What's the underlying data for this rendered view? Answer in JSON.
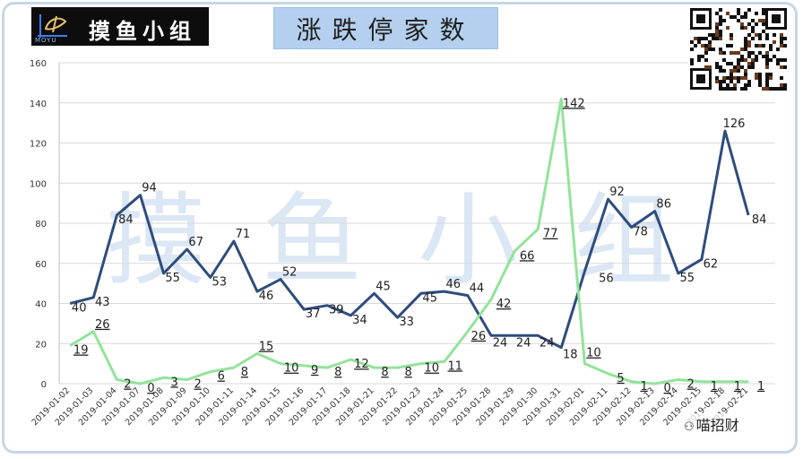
{
  "header": {
    "logo_text": "摸鱼小组",
    "logo_sub": "MOYU",
    "title": "涨跌停家数"
  },
  "watermark": "摸鱼小组",
  "footer": {
    "account": "喵招财"
  },
  "colors": {
    "series_up": "#2e4c7d",
    "series_down": "#93e39a",
    "grid": "#d9d9d9",
    "title_bg": "#b4d0ee",
    "frame": "#c7d6e6"
  },
  "chart_data": {
    "type": "line",
    "title": "涨跌停家数",
    "xlabel": "",
    "ylabel": "",
    "ylim": [
      0,
      160
    ],
    "yticks": [
      0,
      20,
      40,
      60,
      80,
      100,
      120,
      140,
      160
    ],
    "grid": true,
    "legend": "none",
    "categories": [
      "2019-01-02",
      "2019-01-03",
      "2019-01-04",
      "2019-01-07",
      "2019-01-08",
      "2019-01-09",
      "2019-01-10",
      "2019-01-11",
      "2019-01-14",
      "2019-01-15",
      "2019-01-16",
      "2019-01-17",
      "2019-01-18",
      "2019-01-21",
      "2019-01-22",
      "2019-01-23",
      "2019-01-24",
      "2019-01-25",
      "2019-01-28",
      "2019-01-29",
      "2019-01-30",
      "2019-01-31",
      "2019-02-01",
      "2019-02-11",
      "2019-02-12",
      "2019-02-13",
      "2019-02-14",
      "2019-02-15",
      "2019-02-18",
      "2019-02-21"
    ],
    "series": [
      {
        "color": "#2e4c7d",
        "values": [
          40,
          43,
          84,
          94,
          55,
          67,
          53,
          71,
          46,
          52,
          37,
          39,
          34,
          45,
          33,
          45,
          46,
          44,
          24,
          24,
          24,
          18,
          56,
          92,
          78,
          86,
          55,
          62,
          126,
          84
        ]
      },
      {
        "color": "#93e39a",
        "values": [
          19,
          26,
          2,
          0,
          3,
          2,
          6,
          8,
          15,
          10,
          9,
          8,
          12,
          8,
          8,
          10,
          11,
          26,
          42,
          66,
          77,
          142,
          10,
          5,
          1,
          0,
          2,
          1,
          1,
          1
        ]
      }
    ]
  }
}
